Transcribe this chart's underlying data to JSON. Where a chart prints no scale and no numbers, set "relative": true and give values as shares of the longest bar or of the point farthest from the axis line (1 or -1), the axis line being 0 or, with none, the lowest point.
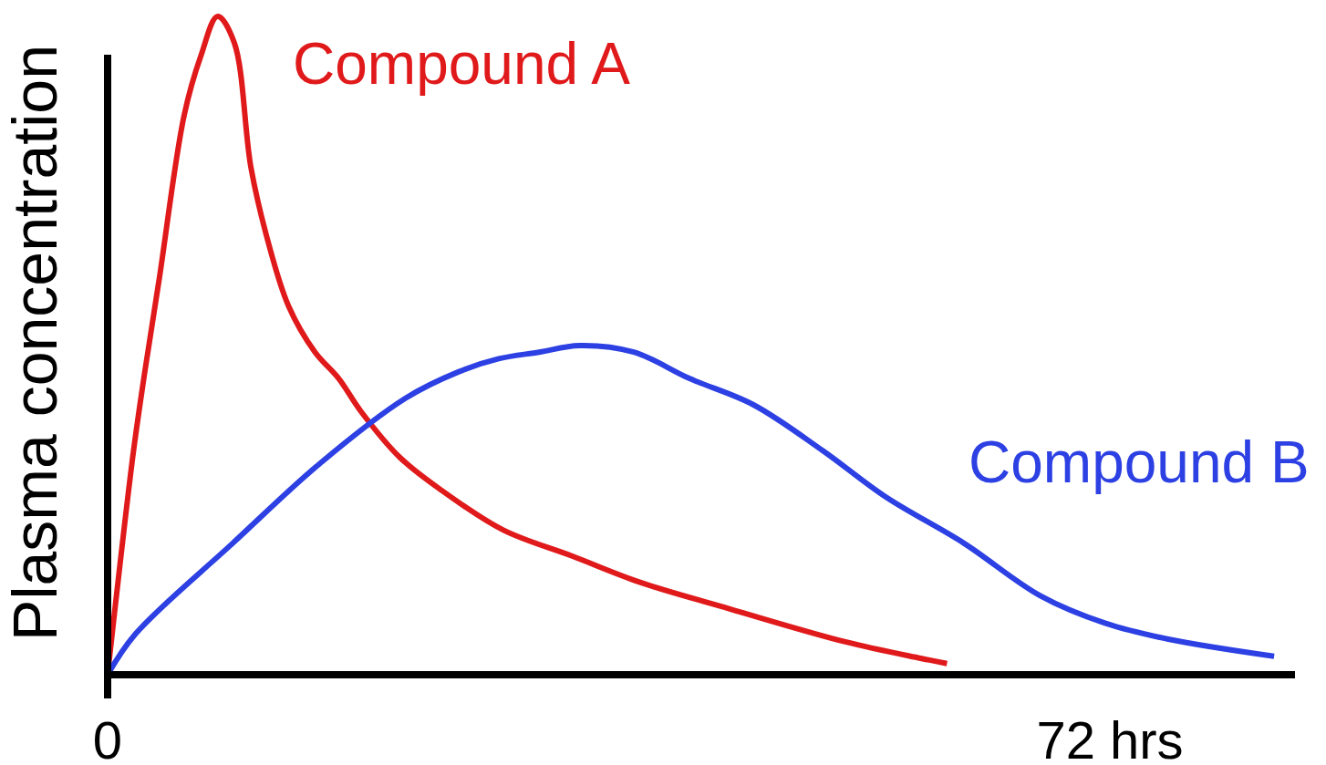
{
  "chart_data": {
    "type": "line",
    "ylabel": "Plasma concentration",
    "relative": true,
    "xlim": [
      0,
      85.3
    ],
    "xticks": [
      0,
      {
        "value": 72,
        "label": "72 hrs"
      }
    ],
    "series": [
      {
        "name": "Compound A",
        "color": "#e0191b",
        "x": [
          0,
          1.8,
          2.6,
          3.7,
          5.5,
          6.7,
          7.9,
          9.1,
          10.3,
          11.5,
          13.0,
          14.9,
          16.6,
          18.2,
          21.0,
          24.0,
          28.4,
          33.4,
          38.3,
          44.7,
          53.0,
          58.4,
          60.3
        ],
        "values": [
          0,
          0.33,
          0.45,
          0.6,
          0.85,
          0.94,
          1,
          0.96,
          0.77,
          0.66,
          0.56,
          0.49,
          0.45,
          0.4,
          0.33,
          0.28,
          0.22,
          0.18,
          0.14,
          0.1,
          0.05,
          0.025,
          0.017
        ]
      },
      {
        "name": "Compound B",
        "color": "#2c40e3",
        "x": [
          0,
          2.0,
          9.0,
          15.2,
          21.4,
          25.2,
          28.1,
          31.0,
          33.9,
          37.8,
          41.8,
          46.4,
          51.4,
          55.9,
          61.5,
          67.0,
          71.7,
          76.2,
          83.8
        ],
        "values": [
          0,
          0.062,
          0.2,
          0.32,
          0.42,
          0.46,
          0.48,
          0.49,
          0.5,
          0.49,
          0.45,
          0.41,
          0.34,
          0.27,
          0.2,
          0.12,
          0.078,
          0.054,
          0.028
        ]
      }
    ]
  }
}
